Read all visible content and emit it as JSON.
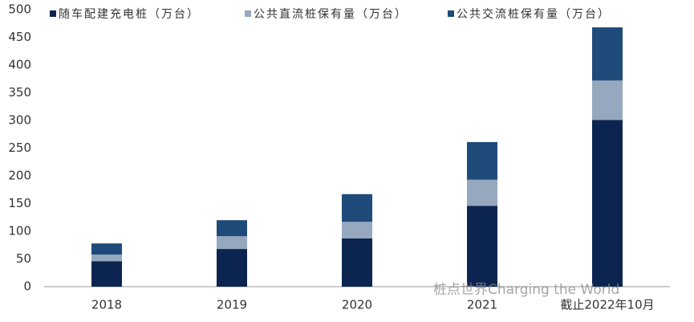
{
  "chart_data": {
    "type": "stacked_bar",
    "categories": [
      "2018",
      "2019",
      "2020",
      "2021",
      "截止2022年10月"
    ],
    "series": [
      {
        "name": "随车配建充电桩（万台）",
        "color": "#0b2550",
        "values": [
          46,
          68,
          87,
          146,
          301
        ]
      },
      {
        "name": "公共直流桩保有量（万台）",
        "color": "#96a8bd",
        "values": [
          12,
          23,
          30,
          47,
          71
        ]
      },
      {
        "name": "公共交流桩保有量（万台）",
        "color": "#1f4b7a",
        "values": [
          20,
          29,
          50,
          68,
          96
        ]
      }
    ],
    "ylim": [
      0,
      500
    ],
    "yticks": [
      0,
      50,
      100,
      150,
      200,
      250,
      300,
      350,
      400,
      450,
      500
    ],
    "grid": false,
    "legend": "top",
    "watermark": "桩点世界Charging the World"
  }
}
